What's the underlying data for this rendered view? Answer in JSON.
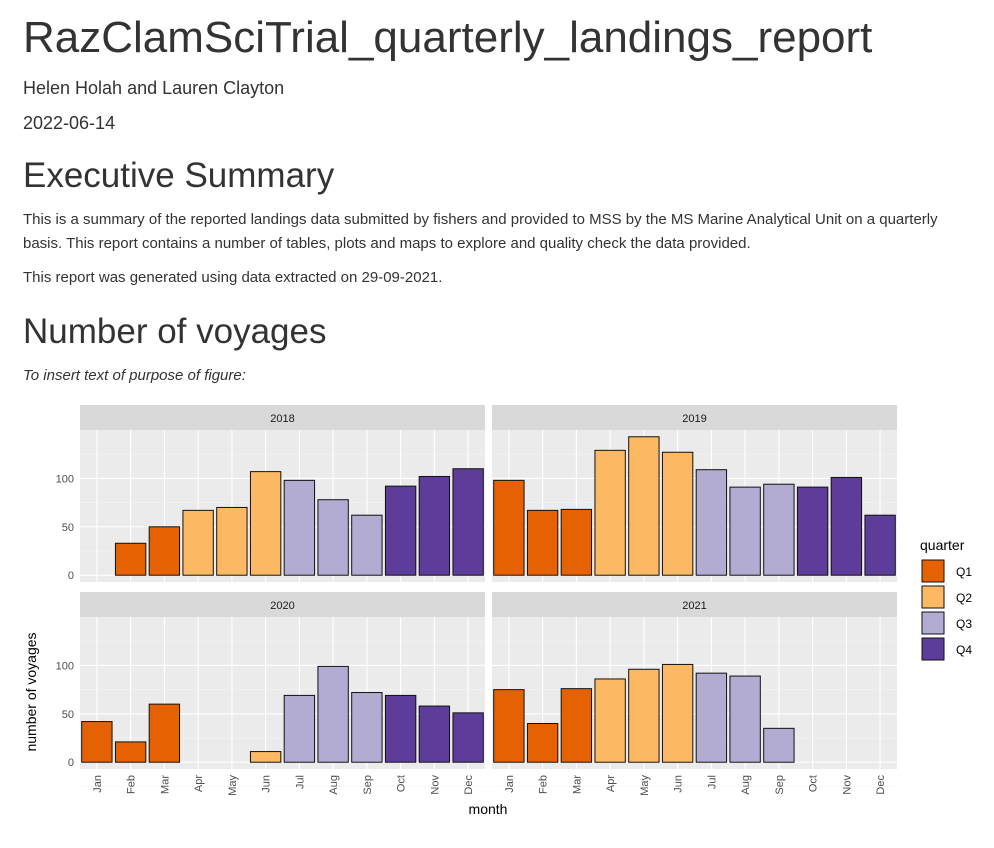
{
  "document": {
    "title": "RazClamSciTrial_quarterly_landings_report",
    "author": "Helen Holah and Lauren Clayton",
    "date": "2022-06-14",
    "sections": [
      {
        "heading": "Executive Summary",
        "paragraphs": [
          "This is a summary of the reported landings data submitted by fishers and provided to MSS by the MS Marine Analytical Unit on a quarterly basis. This report contains a number of tables, plots and maps to explore and quality check the data provided.",
          "This report was generated using data extracted on 29-09-2021."
        ]
      },
      {
        "heading": "Number of voyages",
        "paragraphs": [
          "To insert text of purpose of figure:"
        ]
      }
    ]
  },
  "chart_data": {
    "type": "bar",
    "facets": [
      "2018",
      "2019",
      "2020",
      "2021"
    ],
    "categories": [
      "Jan",
      "Feb",
      "Mar",
      "Apr",
      "May",
      "Jun",
      "Jul",
      "Aug",
      "Sep",
      "Oct",
      "Nov",
      "Dec"
    ],
    "quarters": [
      "Q1",
      "Q1",
      "Q1",
      "Q2",
      "Q2",
      "Q2",
      "Q3",
      "Q3",
      "Q3",
      "Q4",
      "Q4",
      "Q4"
    ],
    "series": [
      {
        "facet": "2018",
        "values": [
          null,
          33,
          50,
          67,
          70,
          107,
          98,
          78,
          62,
          92,
          102,
          110
        ]
      },
      {
        "facet": "2019",
        "values": [
          98,
          67,
          68,
          129,
          143,
          127,
          109,
          91,
          94,
          91,
          101,
          62
        ]
      },
      {
        "facet": "2020",
        "values": [
          42,
          21,
          60,
          null,
          null,
          11,
          69,
          99,
          72,
          69,
          58,
          51
        ]
      },
      {
        "facet": "2021",
        "values": [
          75,
          40,
          76,
          86,
          96,
          101,
          92,
          89,
          35,
          null,
          null,
          null
        ]
      }
    ],
    "xlabel": "month",
    "ylabel": "number of voyages",
    "yticks": [
      0,
      50,
      100
    ],
    "ylim": [
      -7,
      150
    ],
    "grid": true,
    "legend": {
      "title": "quarter",
      "position": "right",
      "entries": [
        "Q1",
        "Q2",
        "Q3",
        "Q4"
      ]
    },
    "colors": {
      "Q1": "#e66101",
      "Q2": "#fdb863",
      "Q3": "#b2abd2",
      "Q4": "#5e3c99"
    }
  }
}
